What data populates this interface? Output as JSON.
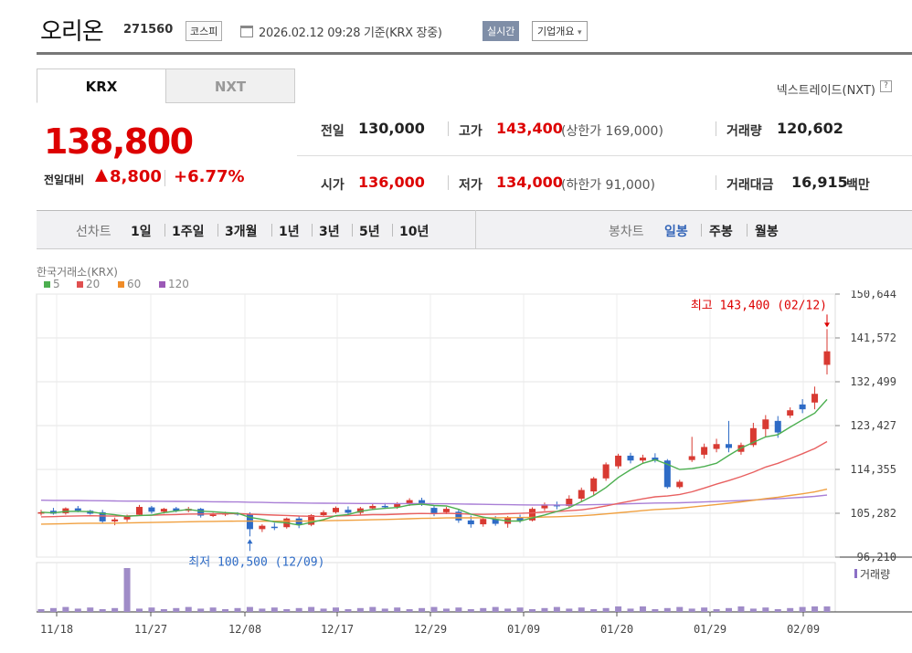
{
  "header": {
    "company_name": "오리온",
    "company_code": "271560",
    "market_badge": "코스피",
    "timestamp": "2026.02.12 09:28  기준(KRX 장중)",
    "realtime_badge": "실시간",
    "overview_button": "기업개요"
  },
  "tabs": [
    {
      "label": "KRX",
      "active": true
    },
    {
      "label": "NXT",
      "active": false
    }
  ],
  "nxt_link": "넥스트레이드(NXT)",
  "price": {
    "current": "138,800",
    "change_label": "전일대비",
    "change_value": "8,800",
    "change_pct": "+6.77%"
  },
  "stats": {
    "prev_close_label": "전일",
    "prev_close": "130,000",
    "high_label": "고가",
    "high": "143,400",
    "upper_limit": "(상한가 169,000)",
    "volume_label": "거래량",
    "volume": "120,602",
    "open_label": "시가",
    "open": "136,000",
    "low_label": "저가",
    "low": "134,000",
    "lower_limit": "(하한가 91,000)",
    "value_label": "거래대금",
    "value": "16,915",
    "value_unit": "백만"
  },
  "period": {
    "line_label": "선차트",
    "line_items": [
      "1일",
      "1주일",
      "3개월",
      "1년",
      "3년",
      "5년",
      "10년"
    ],
    "candle_label": "봉차트",
    "candle_items": [
      "일봉",
      "주봉",
      "월봉"
    ],
    "candle_active": "일봉"
  },
  "chart_data": {
    "type": "candlestick",
    "source": "한국거래소(KRX)",
    "legend": [
      {
        "name": "5",
        "color": "#4caf50"
      },
      {
        "name": "20",
        "color": "#e05050"
      },
      {
        "name": "60",
        "color": "#f08c28"
      },
      {
        "name": "120",
        "color": "#9b59b6"
      }
    ],
    "y_ticks": [
      "150,644",
      "141,572",
      "132,499",
      "123,427",
      "114,355",
      "105,282",
      "96,210"
    ],
    "ylim": [
      96210,
      150644
    ],
    "x_ticks": [
      "11/18",
      "11/27",
      "12/08",
      "12/17",
      "12/29",
      "01/09",
      "01/20",
      "01/29",
      "02/09"
    ],
    "annotation_high": "최고 143,400 (02/12)",
    "annotation_low": "최저 100,500 (12/09)",
    "volume_label": "거래량",
    "candles": [
      {
        "o": 105200,
        "h": 106000,
        "l": 104800,
        "c": 105500
      },
      {
        "o": 105800,
        "h": 106400,
        "l": 105000,
        "c": 105200
      },
      {
        "o": 105300,
        "h": 106500,
        "l": 105000,
        "c": 106300
      },
      {
        "o": 106300,
        "h": 106800,
        "l": 105500,
        "c": 105800
      },
      {
        "o": 105800,
        "h": 106000,
        "l": 105000,
        "c": 105200
      },
      {
        "o": 105500,
        "h": 106000,
        "l": 103200,
        "c": 103600
      },
      {
        "o": 103600,
        "h": 104400,
        "l": 102800,
        "c": 104000
      },
      {
        "o": 104000,
        "h": 105000,
        "l": 103500,
        "c": 104700
      },
      {
        "o": 105000,
        "h": 107000,
        "l": 104800,
        "c": 106600
      },
      {
        "o": 106500,
        "h": 106800,
        "l": 105200,
        "c": 105600
      },
      {
        "o": 105600,
        "h": 106400,
        "l": 105200,
        "c": 106200
      },
      {
        "o": 106300,
        "h": 106600,
        "l": 105500,
        "c": 105800
      },
      {
        "o": 105800,
        "h": 106600,
        "l": 105500,
        "c": 106200
      },
      {
        "o": 106200,
        "h": 106400,
        "l": 104400,
        "c": 104800
      },
      {
        "o": 104800,
        "h": 105400,
        "l": 104500,
        "c": 105000
      },
      {
        "o": 105000,
        "h": 105600,
        "l": 104700,
        "c": 105300
      },
      {
        "o": 105300,
        "h": 105500,
        "l": 104800,
        "c": 105100
      },
      {
        "o": 105000,
        "h": 105500,
        "l": 100500,
        "c": 102000
      },
      {
        "o": 102000,
        "h": 103000,
        "l": 101400,
        "c": 102700
      },
      {
        "o": 102500,
        "h": 103300,
        "l": 101800,
        "c": 102400
      },
      {
        "o": 102400,
        "h": 104400,
        "l": 102100,
        "c": 104200
      },
      {
        "o": 104200,
        "h": 104700,
        "l": 102200,
        "c": 102900
      },
      {
        "o": 102900,
        "h": 105100,
        "l": 102600,
        "c": 104900
      },
      {
        "o": 104900,
        "h": 105900,
        "l": 104700,
        "c": 105500
      },
      {
        "o": 105500,
        "h": 106700,
        "l": 105200,
        "c": 106400
      },
      {
        "o": 106000,
        "h": 106700,
        "l": 105100,
        "c": 105400
      },
      {
        "o": 105400,
        "h": 106600,
        "l": 104900,
        "c": 106300
      },
      {
        "o": 106300,
        "h": 107200,
        "l": 106000,
        "c": 106800
      },
      {
        "o": 106800,
        "h": 107400,
        "l": 106200,
        "c": 106600
      },
      {
        "o": 106600,
        "h": 107600,
        "l": 106200,
        "c": 107300
      },
      {
        "o": 107300,
        "h": 108400,
        "l": 106800,
        "c": 108000
      },
      {
        "o": 108000,
        "h": 108500,
        "l": 106800,
        "c": 107200
      },
      {
        "o": 106400,
        "h": 106800,
        "l": 104700,
        "c": 105300
      },
      {
        "o": 105500,
        "h": 106600,
        "l": 105100,
        "c": 106200
      },
      {
        "o": 105600,
        "h": 106200,
        "l": 103300,
        "c": 103800
      },
      {
        "o": 103800,
        "h": 104800,
        "l": 102300,
        "c": 103000
      },
      {
        "o": 103000,
        "h": 104400,
        "l": 102500,
        "c": 104100
      },
      {
        "o": 104100,
        "h": 104700,
        "l": 102700,
        "c": 103100
      },
      {
        "o": 103100,
        "h": 104700,
        "l": 102300,
        "c": 104400
      },
      {
        "o": 104400,
        "h": 105000,
        "l": 103300,
        "c": 103800
      },
      {
        "o": 103800,
        "h": 106500,
        "l": 103600,
        "c": 106200
      },
      {
        "o": 106300,
        "h": 107500,
        "l": 105800,
        "c": 107100
      },
      {
        "o": 107000,
        "h": 107700,
        "l": 106100,
        "c": 106800
      },
      {
        "o": 106800,
        "h": 109000,
        "l": 106300,
        "c": 108300
      },
      {
        "o": 108300,
        "h": 110600,
        "l": 107600,
        "c": 110100
      },
      {
        "o": 109800,
        "h": 112800,
        "l": 109000,
        "c": 112500
      },
      {
        "o": 112500,
        "h": 115800,
        "l": 112000,
        "c": 115400
      },
      {
        "o": 115000,
        "h": 117600,
        "l": 114500,
        "c": 117200
      },
      {
        "o": 117200,
        "h": 117800,
        "l": 115600,
        "c": 116200
      },
      {
        "o": 116200,
        "h": 117400,
        "l": 115600,
        "c": 116800
      },
      {
        "o": 116800,
        "h": 117700,
        "l": 115800,
        "c": 116200
      },
      {
        "o": 116200,
        "h": 116500,
        "l": 110400,
        "c": 110700
      },
      {
        "o": 110700,
        "h": 112200,
        "l": 110400,
        "c": 111800
      },
      {
        "o": 116300,
        "h": 121100,
        "l": 115900,
        "c": 117100
      },
      {
        "o": 117400,
        "h": 119700,
        "l": 116600,
        "c": 119000
      },
      {
        "o": 118600,
        "h": 120700,
        "l": 117900,
        "c": 119600
      },
      {
        "o": 119600,
        "h": 124400,
        "l": 117900,
        "c": 118800
      },
      {
        "o": 118000,
        "h": 119900,
        "l": 117400,
        "c": 119400
      },
      {
        "o": 119400,
        "h": 124000,
        "l": 119000,
        "c": 122900
      },
      {
        "o": 122700,
        "h": 125600,
        "l": 121100,
        "c": 124700
      },
      {
        "o": 124400,
        "h": 125400,
        "l": 120900,
        "c": 122000
      },
      {
        "o": 125500,
        "h": 127200,
        "l": 125000,
        "c": 126600
      },
      {
        "o": 127800,
        "h": 128900,
        "l": 126000,
        "c": 126800
      },
      {
        "o": 128200,
        "h": 131500,
        "l": 126800,
        "c": 130000
      },
      {
        "o": 136000,
        "h": 143400,
        "l": 134000,
        "c": 138800
      }
    ],
    "volume_spikes": [
      {
        "index": 7,
        "relative": 1.0
      }
    ]
  }
}
